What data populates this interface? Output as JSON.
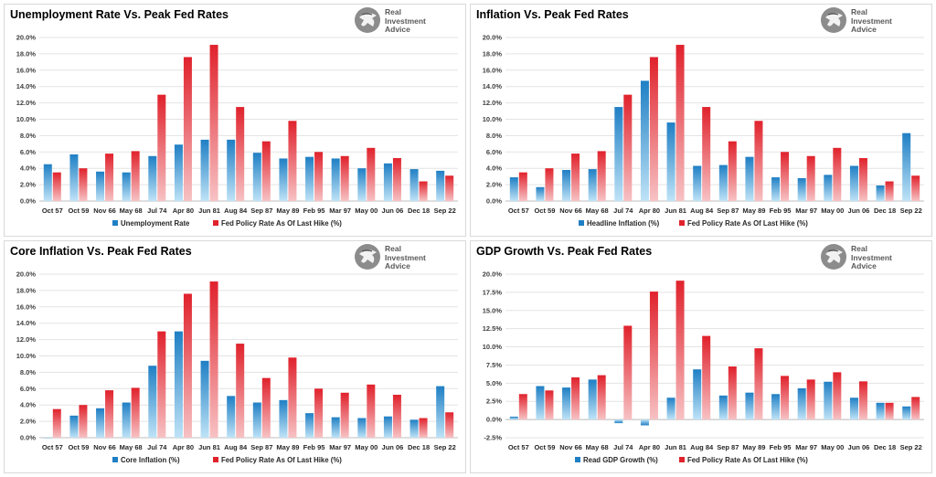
{
  "colors": {
    "fed": "#e0222c",
    "fed_light": "#f7c2c4",
    "blue": "#1f7fc4",
    "blue_light": "#bfe3f7",
    "grid": "#e3e3e3"
  },
  "logo": {
    "line1": "Real",
    "line2": "Investment",
    "line3": "Advice",
    "icon": "eagle-icon"
  },
  "chart_data": [
    {
      "type": "bar",
      "title": "Unemployment Rate Vs. Peak Fed Rates",
      "categories": [
        "Oct 57",
        "Oct 59",
        "Nov 66",
        "May 68",
        "Jul 74",
        "Apr 80",
        "Jun 81",
        "Aug 84",
        "Sep 87",
        "May 89",
        "Feb 95",
        "Mar 97",
        "May 00",
        "Jun 06",
        "Dec 18",
        "Sep 22"
      ],
      "series": [
        {
          "name": "Unemployment Rate",
          "values": [
            4.5,
            5.7,
            3.6,
            3.5,
            5.5,
            6.9,
            7.5,
            7.5,
            5.9,
            5.2,
            5.4,
            5.2,
            4.0,
            4.6,
            3.9,
            3.7
          ]
        },
        {
          "name": "Fed Policy Rate As Of Last Hike (%)",
          "values": [
            3.5,
            4.0,
            5.8,
            6.1,
            13.0,
            17.6,
            19.1,
            11.5,
            7.3,
            9.8,
            6.0,
            5.5,
            6.5,
            5.25,
            2.4,
            3.1
          ]
        }
      ],
      "ylim": [
        0,
        20
      ],
      "ystep": 2,
      "ydecimals": 1,
      "yticklabels": [
        "0.0%",
        "2.0%",
        "4.0%",
        "6.0%",
        "8.0%",
        "10.0%",
        "12.0%",
        "14.0%",
        "16.0%",
        "18.0%",
        "20.0%"
      ],
      "grid": true,
      "legend": "bottom"
    },
    {
      "type": "bar",
      "title": "Inflation Vs. Peak Fed Rates",
      "categories": [
        "Oct 57",
        "Oct 59",
        "Nov 66",
        "May 68",
        "Jul 74",
        "Apr 80",
        "Jun 81",
        "Aug 84",
        "Sep 87",
        "May 89",
        "Feb 95",
        "Mar 97",
        "May 00",
        "Jun 06",
        "Dec 18",
        "Sep 22"
      ],
      "series": [
        {
          "name": "Headline Inflation (%)",
          "values": [
            2.9,
            1.7,
            3.8,
            3.9,
            11.5,
            14.7,
            9.6,
            4.3,
            4.4,
            5.4,
            2.9,
            2.8,
            3.2,
            4.3,
            1.9,
            8.3
          ]
        },
        {
          "name": "Fed Policy Rate As Of Last Hike (%)",
          "values": [
            3.5,
            4.0,
            5.8,
            6.1,
            13.0,
            17.6,
            19.1,
            11.5,
            7.3,
            9.8,
            6.0,
            5.5,
            6.5,
            5.25,
            2.4,
            3.1
          ]
        }
      ],
      "ylim": [
        0,
        20
      ],
      "ystep": 2,
      "ydecimals": 1,
      "yticklabels": [
        "0.0%",
        "2.0%",
        "4.0%",
        "6.0%",
        "8.0%",
        "10.0%",
        "12.0%",
        "14.0%",
        "16.0%",
        "18.0%",
        "20.0%"
      ],
      "grid": true,
      "legend": "bottom"
    },
    {
      "type": "bar",
      "title": "Core Inflation Vs. Peak Fed Rates",
      "categories": [
        "Oct 57",
        "Oct 59",
        "Nov 66",
        "May 68",
        "Jul 74",
        "Apr 80",
        "Jun 81",
        "Aug 84",
        "Sep 87",
        "May 89",
        "Feb 95",
        "Mar 97",
        "May 00",
        "Jun 06",
        "Dec 18",
        "Sep 22"
      ],
      "series": [
        {
          "name": "Core Inflation (%)",
          "values": [
            0.0,
            2.7,
            3.6,
            4.3,
            8.8,
            13.0,
            9.4,
            5.1,
            4.3,
            4.6,
            3.0,
            2.5,
            2.4,
            2.6,
            2.2,
            6.3
          ]
        },
        {
          "name": "Fed Policy Rate As Of Last Hike (%)",
          "values": [
            3.5,
            4.0,
            5.8,
            6.1,
            13.0,
            17.6,
            19.1,
            11.5,
            7.3,
            9.8,
            6.0,
            5.5,
            6.5,
            5.25,
            2.4,
            3.1
          ]
        }
      ],
      "ylim": [
        0,
        20
      ],
      "ystep": 2,
      "ydecimals": 1,
      "yticklabels": [
        "0.0%",
        "2.0%",
        "4.0%",
        "6.0%",
        "8.0%",
        "10.0%",
        "12.0%",
        "14.0%",
        "16.0%",
        "18.0%",
        "20.0%"
      ],
      "grid": true,
      "legend": "bottom"
    },
    {
      "type": "bar",
      "title": "GDP Growth Vs. Peak Fed Rates",
      "categories": [
        "Oct 57",
        "Oct 59",
        "Nov 66",
        "May 68",
        "Jul 74",
        "Apr 80",
        "Jun 81",
        "Aug 84",
        "Sep 87",
        "May 89",
        "Feb 95",
        "Mar 97",
        "May 00",
        "Jun 06",
        "Dec 18",
        "Sep 22"
      ],
      "series": [
        {
          "name": "Read GDP Growth (%)",
          "values": [
            0.4,
            4.6,
            4.4,
            5.5,
            -0.5,
            -0.8,
            3.0,
            6.9,
            3.3,
            3.7,
            3.5,
            4.3,
            5.2,
            3.0,
            2.3,
            1.8
          ]
        },
        {
          "name": "Fed Policy Rate As Of Last Hike (%)",
          "values": [
            3.5,
            4.0,
            5.8,
            6.1,
            12.9,
            17.6,
            19.1,
            11.5,
            7.3,
            9.8,
            6.0,
            5.5,
            6.5,
            5.25,
            2.3,
            3.1
          ]
        }
      ],
      "ylim": [
        -2.5,
        20
      ],
      "ystep": 2.5,
      "ydecimals": 1,
      "yticklabels": [
        "-2.5%",
        "0.0%",
        "2.5%",
        "5.0%",
        "7.5%",
        "10.0%",
        "12.5%",
        "15.0%",
        "17.5%",
        "20.0%"
      ],
      "grid": true,
      "legend": "bottom"
    }
  ]
}
